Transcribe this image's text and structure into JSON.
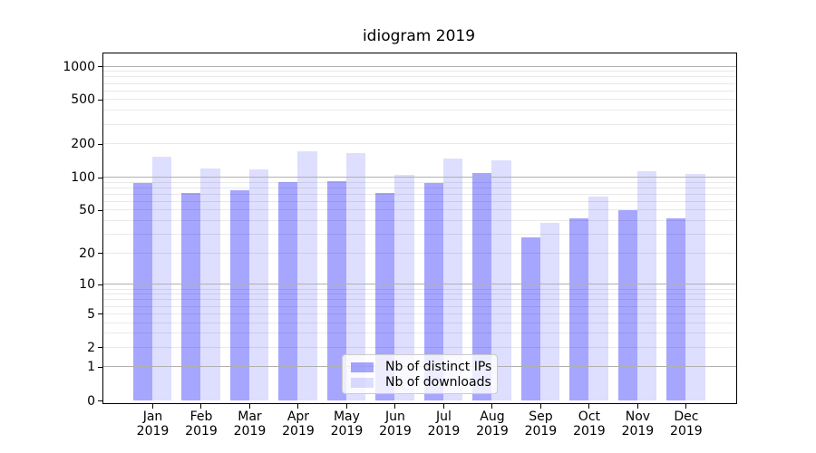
{
  "title": "idiogram 2019",
  "colors": {
    "bar_ips": "rgba(0,0,255,0.35)",
    "bar_downloads": "rgba(0,0,255,0.13)",
    "grid_major": "#b0b0b0",
    "grid_minor": "#e9e9e9",
    "axis": "#000000",
    "legend_border": "#cccccc"
  },
  "chart_data": {
    "type": "bar",
    "title": "idiogram 2019",
    "categories": [
      "Jan 2019",
      "Feb 2019",
      "Mar 2019",
      "Apr 2019",
      "May 2019",
      "Jun 2019",
      "Jul 2019",
      "Aug 2019",
      "Sep 2019",
      "Oct 2019",
      "Nov 2019",
      "Dec 2019"
    ],
    "series": [
      {
        "name": "Nb of distinct IPs",
        "color": "rgba(0,0,255,0.35)",
        "values": [
          88,
          72,
          76,
          90,
          92,
          72,
          88,
          108,
          28,
          42,
          50,
          42
        ]
      },
      {
        "name": "Nb of downloads",
        "color": "rgba(0,0,255,0.13)",
        "values": [
          153,
          120,
          118,
          170,
          166,
          104,
          148,
          142,
          38,
          67,
          113,
          107
        ]
      }
    ],
    "xlabel": "",
    "ylabel": "",
    "yscale": "log1p",
    "yticks": [
      1000,
      500,
      200,
      100,
      50,
      20,
      10,
      5,
      2,
      1,
      0
    ],
    "ylim": [
      0,
      1200
    ],
    "grid": "both",
    "legend_position": "lower center inside"
  }
}
